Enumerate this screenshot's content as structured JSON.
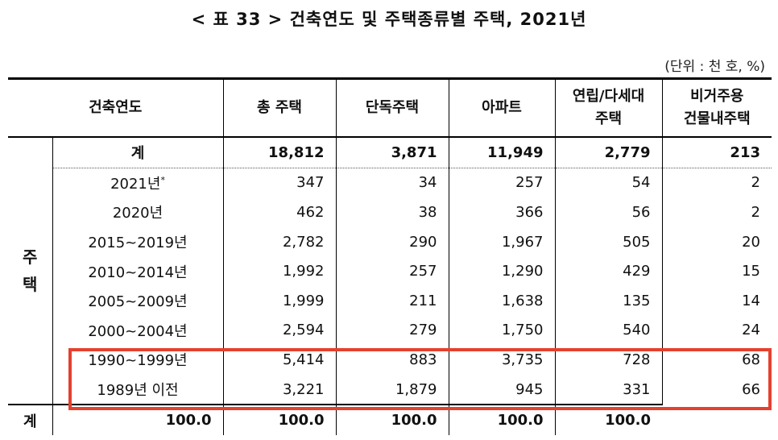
{
  "title": "< 표 33 > 건축연도 및 주택종류별 주택, 2021년",
  "unit": "(단위 : 천 호, %)",
  "headers": {
    "year": "건축연도",
    "total": "총 주택",
    "detached": "단독주택",
    "apartment": "아파트",
    "row_house_1": "연립/다세대",
    "row_house_2": "주택",
    "nonres_1": "비거주용",
    "nonres_2": "건물내주택"
  },
  "side_label": {
    "line1": "주",
    "line2": "택"
  },
  "total_row": {
    "label": "계",
    "values": [
      "18,812",
      "3,871",
      "11,949",
      "2,779",
      "213"
    ]
  },
  "rows": [
    {
      "year": "2021년",
      "mark": "*",
      "values": [
        "347",
        "34",
        "257",
        "54",
        "2"
      ]
    },
    {
      "year": "2020년",
      "mark": "",
      "values": [
        "462",
        "38",
        "366",
        "56",
        "2"
      ]
    },
    {
      "year": "2015~2019년",
      "mark": "",
      "values": [
        "2,782",
        "290",
        "1,967",
        "505",
        "20"
      ]
    },
    {
      "year": "2010~2014년",
      "mark": "",
      "values": [
        "1,992",
        "257",
        "1,290",
        "429",
        "15"
      ]
    },
    {
      "year": "2005~2009년",
      "mark": "",
      "values": [
        "1,999",
        "211",
        "1,638",
        "135",
        "14"
      ]
    },
    {
      "year": "2000~2004년",
      "mark": "",
      "values": [
        "2,594",
        "279",
        "1,750",
        "540",
        "24"
      ]
    },
    {
      "year": "1990~1999년",
      "mark": "",
      "values": [
        "5,414",
        "883",
        "3,735",
        "728",
        "68"
      ]
    },
    {
      "year": "1989년 이전",
      "mark": "",
      "values": [
        "3,221",
        "1,879",
        "945",
        "331",
        "66"
      ]
    }
  ],
  "pct_row": {
    "label": "계",
    "values": [
      "100.0",
      "100.0",
      "100.0",
      "100.0",
      "100.0"
    ]
  },
  "colors": {
    "highlight": "#e4412f"
  }
}
